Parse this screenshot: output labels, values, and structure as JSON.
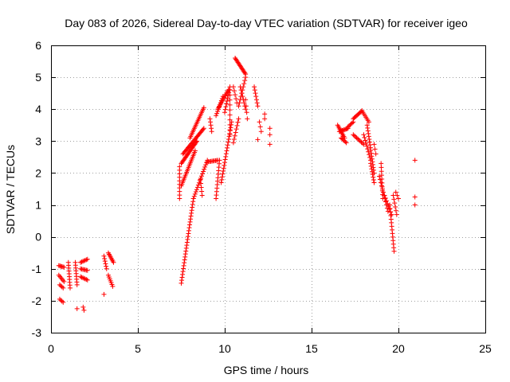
{
  "chart_data": {
    "type": "scatter",
    "title": "Day 083 of 2026, Sidereal Day-to-day VTEC variation (SDTVAR) for receiver igeo",
    "xlabel": "GPS time / hours",
    "ylabel": "SDTVAR / TECUs",
    "xlim": [
      0,
      25
    ],
    "ylim": [
      -3,
      6
    ],
    "xticks": [
      0,
      5,
      10,
      15,
      20,
      25
    ],
    "yticks": [
      -3,
      -2,
      -1,
      0,
      1,
      2,
      3,
      4,
      5,
      6
    ],
    "grid": true,
    "marker": "plus",
    "color": "#ff0000",
    "segments": [
      {
        "x0": 0.45,
        "y0": -0.9,
        "x1": 0.75,
        "y1": -0.95,
        "n": 6
      },
      {
        "x0": 0.45,
        "y0": -1.2,
        "x1": 0.75,
        "y1": -1.4,
        "n": 6
      },
      {
        "x0": 0.5,
        "y0": -1.5,
        "x1": 0.7,
        "y1": -1.6,
        "n": 4
      },
      {
        "x0": 0.5,
        "y0": -1.95,
        "x1": 0.7,
        "y1": -2.05,
        "n": 4
      },
      {
        "x0": 1.0,
        "y0": -0.8,
        "x1": 1.1,
        "y1": -1.6,
        "n": 10
      },
      {
        "x0": 1.4,
        "y0": -0.8,
        "x1": 1.5,
        "y1": -1.5,
        "n": 9
      },
      {
        "x0": 1.5,
        "y0": -2.25,
        "x1": 1.5,
        "y1": -2.25,
        "n": 1
      },
      {
        "x0": 1.85,
        "y0": -2.2,
        "x1": 1.9,
        "y1": -2.3,
        "n": 2
      },
      {
        "x0": 1.7,
        "y0": -0.8,
        "x1": 2.1,
        "y1": -0.7,
        "n": 7
      },
      {
        "x0": 1.7,
        "y0": -1.0,
        "x1": 2.1,
        "y1": -1.05,
        "n": 7
      },
      {
        "x0": 1.7,
        "y0": -1.25,
        "x1": 2.1,
        "y1": -1.35,
        "n": 7
      },
      {
        "x0": 3.05,
        "y0": -0.6,
        "x1": 3.2,
        "y1": -1.0,
        "n": 6
      },
      {
        "x0": 3.05,
        "y0": -1.8,
        "x1": 3.05,
        "y1": -1.8,
        "n": 1
      },
      {
        "x0": 3.3,
        "y0": -0.5,
        "x1": 3.6,
        "y1": -0.8,
        "n": 8
      },
      {
        "x0": 3.3,
        "y0": -1.2,
        "x1": 3.55,
        "y1": -1.55,
        "n": 7
      },
      {
        "x0": 7.4,
        "y0": 2.2,
        "x1": 7.4,
        "y1": 1.2,
        "n": 10
      },
      {
        "x0": 7.5,
        "y0": 1.6,
        "x1": 8.3,
        "y1": 2.7,
        "n": 22
      },
      {
        "x0": 7.5,
        "y0": 2.3,
        "x1": 8.4,
        "y1": 3.0,
        "n": 22
      },
      {
        "x0": 7.6,
        "y0": 2.6,
        "x1": 8.8,
        "y1": 3.4,
        "n": 26
      },
      {
        "x0": 8.0,
        "y0": 3.1,
        "x1": 8.8,
        "y1": 4.05,
        "n": 20
      },
      {
        "x0": 7.5,
        "y0": -1.45,
        "x1": 8.2,
        "y1": 1.2,
        "n": 30
      },
      {
        "x0": 8.2,
        "y0": 1.2,
        "x1": 9.0,
        "y1": 2.4,
        "n": 18
      },
      {
        "x0": 8.6,
        "y0": 1.8,
        "x1": 8.7,
        "y1": 1.3,
        "n": 5
      },
      {
        "x0": 9.0,
        "y0": 2.35,
        "x1": 9.6,
        "y1": 2.4,
        "n": 10
      },
      {
        "x0": 9.15,
        "y0": 3.7,
        "x1": 9.25,
        "y1": 3.3,
        "n": 5
      },
      {
        "x0": 9.5,
        "y0": 1.2,
        "x1": 9.7,
        "y1": 2.4,
        "n": 12
      },
      {
        "x0": 9.5,
        "y0": 3.8,
        "x1": 9.9,
        "y1": 4.4,
        "n": 10
      },
      {
        "x0": 9.6,
        "y0": 4.0,
        "x1": 10.2,
        "y1": 4.6,
        "n": 14
      },
      {
        "x0": 9.8,
        "y0": 1.7,
        "x1": 10.4,
        "y1": 3.6,
        "n": 22
      },
      {
        "x0": 10.0,
        "y0": 3.9,
        "x1": 10.3,
        "y1": 4.7,
        "n": 10
      },
      {
        "x0": 10.3,
        "y0": 3.2,
        "x1": 10.3,
        "y1": 4.6,
        "n": 10
      },
      {
        "x0": 10.5,
        "y0": 2.95,
        "x1": 10.8,
        "y1": 3.7,
        "n": 8
      },
      {
        "x0": 10.5,
        "y0": 4.7,
        "x1": 10.7,
        "y1": 4.2,
        "n": 5
      },
      {
        "x0": 10.6,
        "y0": 5.6,
        "x1": 11.2,
        "y1": 5.1,
        "n": 16
      },
      {
        "x0": 10.8,
        "y0": 4.1,
        "x1": 11.2,
        "y1": 5.0,
        "n": 10
      },
      {
        "x0": 10.9,
        "y0": 4.7,
        "x1": 11.2,
        "y1": 4.0,
        "n": 8
      },
      {
        "x0": 11.2,
        "y0": 4.3,
        "x1": 11.3,
        "y1": 3.7,
        "n": 4
      },
      {
        "x0": 11.7,
        "y0": 4.7,
        "x1": 11.9,
        "y1": 4.1,
        "n": 7
      },
      {
        "x0": 12.0,
        "y0": 3.6,
        "x1": 12.1,
        "y1": 3.3,
        "n": 3
      },
      {
        "x0": 11.9,
        "y0": 3.05,
        "x1": 11.9,
        "y1": 3.05,
        "n": 1
      },
      {
        "x0": 12.3,
        "y0": 3.85,
        "x1": 12.3,
        "y1": 3.7,
        "n": 2
      },
      {
        "x0": 12.6,
        "y0": 3.4,
        "x1": 12.6,
        "y1": 3.2,
        "n": 2
      },
      {
        "x0": 12.6,
        "y0": 2.9,
        "x1": 12.6,
        "y1": 2.9,
        "n": 1
      },
      {
        "x0": 16.5,
        "y0": 3.5,
        "x1": 16.9,
        "y1": 3.1,
        "n": 10
      },
      {
        "x0": 16.6,
        "y0": 3.3,
        "x1": 17.1,
        "y1": 3.4,
        "n": 10
      },
      {
        "x0": 16.7,
        "y0": 3.1,
        "x1": 17.0,
        "y1": 2.95,
        "n": 6
      },
      {
        "x0": 17.1,
        "y0": 3.45,
        "x1": 17.4,
        "y1": 3.6,
        "n": 6
      },
      {
        "x0": 17.4,
        "y0": 3.7,
        "x1": 17.9,
        "y1": 3.95,
        "n": 10
      },
      {
        "x0": 17.9,
        "y0": 3.95,
        "x1": 18.3,
        "y1": 3.6,
        "n": 8
      },
      {
        "x0": 17.4,
        "y0": 3.2,
        "x1": 18.0,
        "y1": 2.9,
        "n": 10
      },
      {
        "x0": 18.2,
        "y0": 3.5,
        "x1": 18.6,
        "y1": 2.0,
        "n": 18
      },
      {
        "x0": 18.0,
        "y0": 3.2,
        "x1": 18.4,
        "y1": 2.4,
        "n": 10
      },
      {
        "x0": 18.4,
        "y0": 2.3,
        "x1": 18.6,
        "y1": 1.7,
        "n": 8
      },
      {
        "x0": 18.6,
        "y0": 2.9,
        "x1": 18.7,
        "y1": 2.6,
        "n": 3
      },
      {
        "x0": 19.0,
        "y0": 2.3,
        "x1": 19.1,
        "y1": 1.2,
        "n": 10
      },
      {
        "x0": 18.9,
        "y0": 1.9,
        "x1": 19.4,
        "y1": 0.8,
        "n": 12
      },
      {
        "x0": 19.2,
        "y0": 1.3,
        "x1": 19.6,
        "y1": 0.7,
        "n": 8
      },
      {
        "x0": 19.5,
        "y0": 1.0,
        "x1": 19.75,
        "y1": -0.45,
        "n": 14
      },
      {
        "x0": 19.7,
        "y0": 1.3,
        "x1": 19.9,
        "y1": 0.7,
        "n": 6
      },
      {
        "x0": 19.85,
        "y0": 1.4,
        "x1": 20.0,
        "y1": 1.2,
        "n": 3
      },
      {
        "x0": 20.95,
        "y0": 2.4,
        "x1": 20.95,
        "y1": 2.4,
        "n": 1
      },
      {
        "x0": 20.95,
        "y0": 1.25,
        "x1": 20.95,
        "y1": 1.0,
        "n": 2
      }
    ]
  }
}
